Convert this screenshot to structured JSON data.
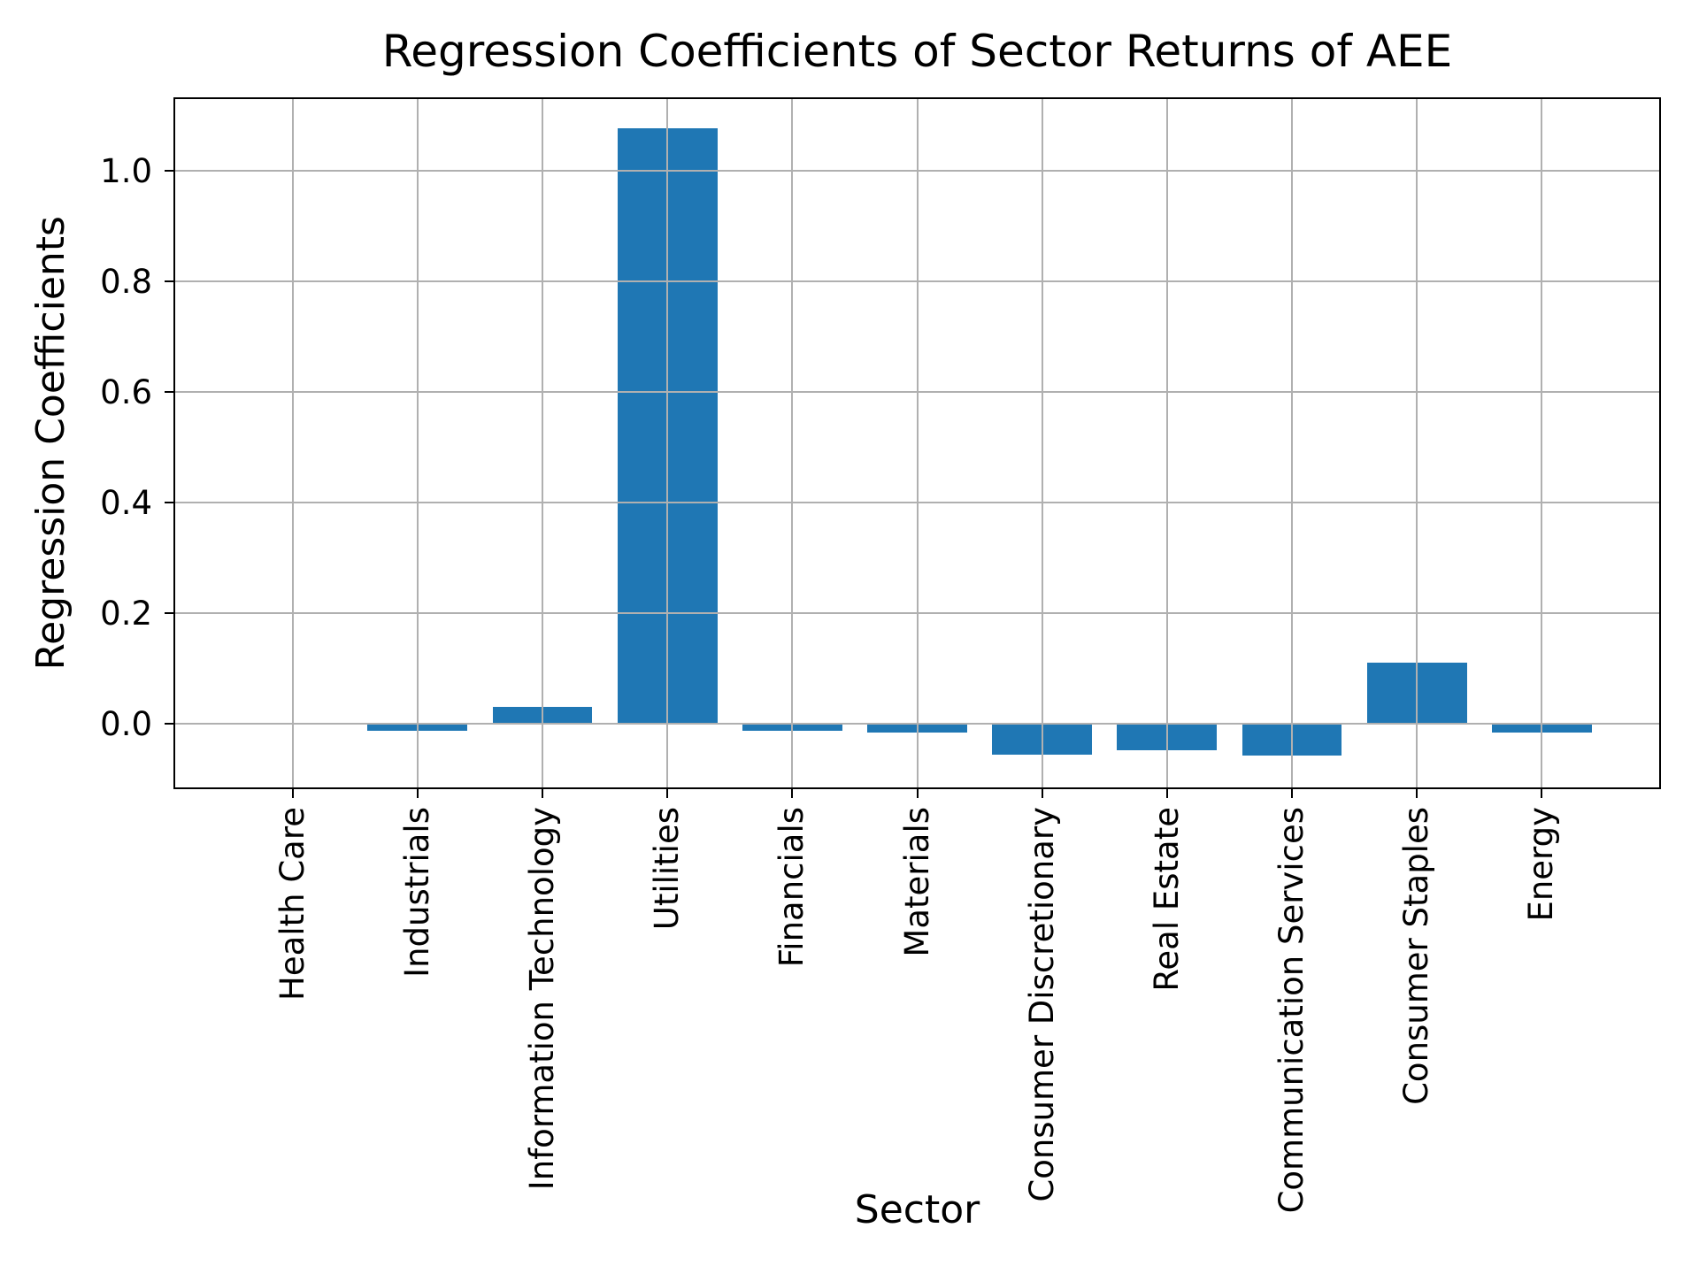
{
  "figure": {
    "background": "#ffffff"
  },
  "chart_data": {
    "type": "bar",
    "title": "Regression Coefficients of Sector Returns of AEE",
    "xlabel": "Sector",
    "ylabel": "Regression Coefficients",
    "categories": [
      "Health Care",
      "Industrials",
      "Information Technology",
      "Utilities",
      "Financials",
      "Materials",
      "Consumer Discretionary",
      "Real Estate",
      "Communication Services",
      "Consumer Staples",
      "Energy"
    ],
    "values": [
      0.0,
      -0.012,
      0.03,
      1.077,
      -0.013,
      -0.016,
      -0.056,
      -0.048,
      -0.058,
      0.11,
      -0.016
    ],
    "ytick_labels": [
      "0.0",
      "0.2",
      "0.4",
      "0.6",
      "0.8",
      "1.0"
    ],
    "yticks": [
      0.0,
      0.2,
      0.4,
      0.6,
      0.8,
      1.0
    ],
    "ylim": [
      -0.115,
      1.13
    ],
    "xlim": [
      -0.94,
      10.94
    ],
    "bar_width_units": 0.8,
    "grid": true,
    "legend_position": "none",
    "bar_color": "#1f77b4",
    "grid_color": "#b0b0b0",
    "axis_color": "#000000",
    "text_color": "#000000"
  }
}
